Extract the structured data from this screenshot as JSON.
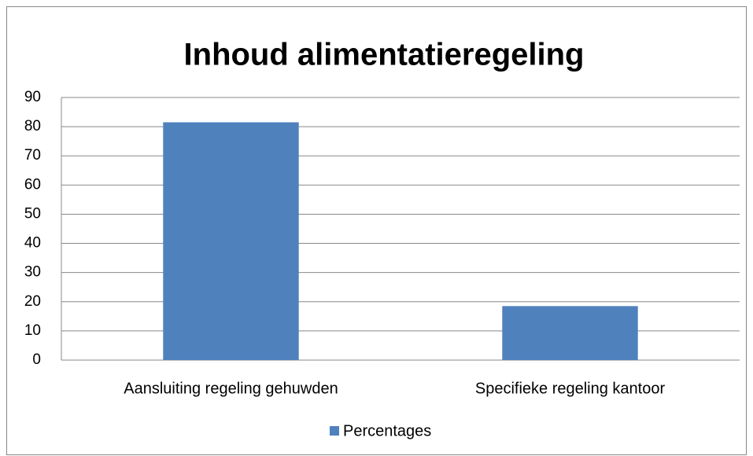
{
  "chart_data": {
    "type": "bar",
    "title": "Inhoud alimentatieregeling",
    "categories": [
      "Aansluiting regeling gehuwden",
      "Specifieke regeling kantoor"
    ],
    "series": [
      {
        "name": "Percentages",
        "color": "#4f81bd",
        "values": [
          81.5,
          18.5
        ]
      }
    ],
    "ylim": [
      0,
      90
    ],
    "yticks": [
      0,
      10,
      20,
      30,
      40,
      50,
      60,
      70,
      80,
      90
    ],
    "grid": true,
    "legend": "bottom"
  }
}
